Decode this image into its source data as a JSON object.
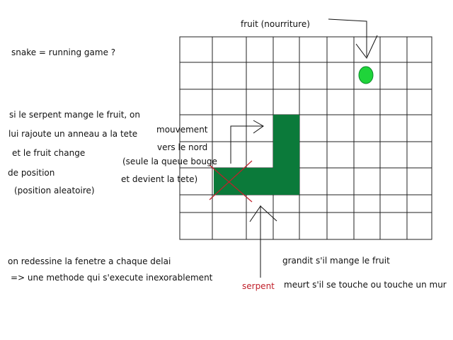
{
  "colors": {
    "snake": "#0b7a3a",
    "fruit": "#1fd43a",
    "fruit_outline": "#0a8a2a",
    "cross": "#c0202a",
    "grid": "#222222",
    "serpent_label": "#c0202a"
  },
  "grid": {
    "cols": 10,
    "rows": 7
  },
  "labels": {
    "fruit_label": "fruit (nourriture)",
    "title_note": "snake = running game ?",
    "rule_lines": [
      "si le serpent mange le fruit, on",
      "lui rajoute un anneau a la tete",
      "et le fruit change",
      "de position",
      "(position aleatoire)"
    ],
    "movement_lines": [
      "mouvement",
      "vers le nord",
      "(seule la queue bouge",
      "et devient la tete)"
    ],
    "redraw_lines": [
      "on redessine la fenetre a chaque delai",
      "=> une methode qui s'execute inexorablement"
    ],
    "serpent_label": "serpent",
    "grows_label": "grandit s'il mange le fruit",
    "dies_label": "meurt s'il se touche ou touche un mur"
  }
}
